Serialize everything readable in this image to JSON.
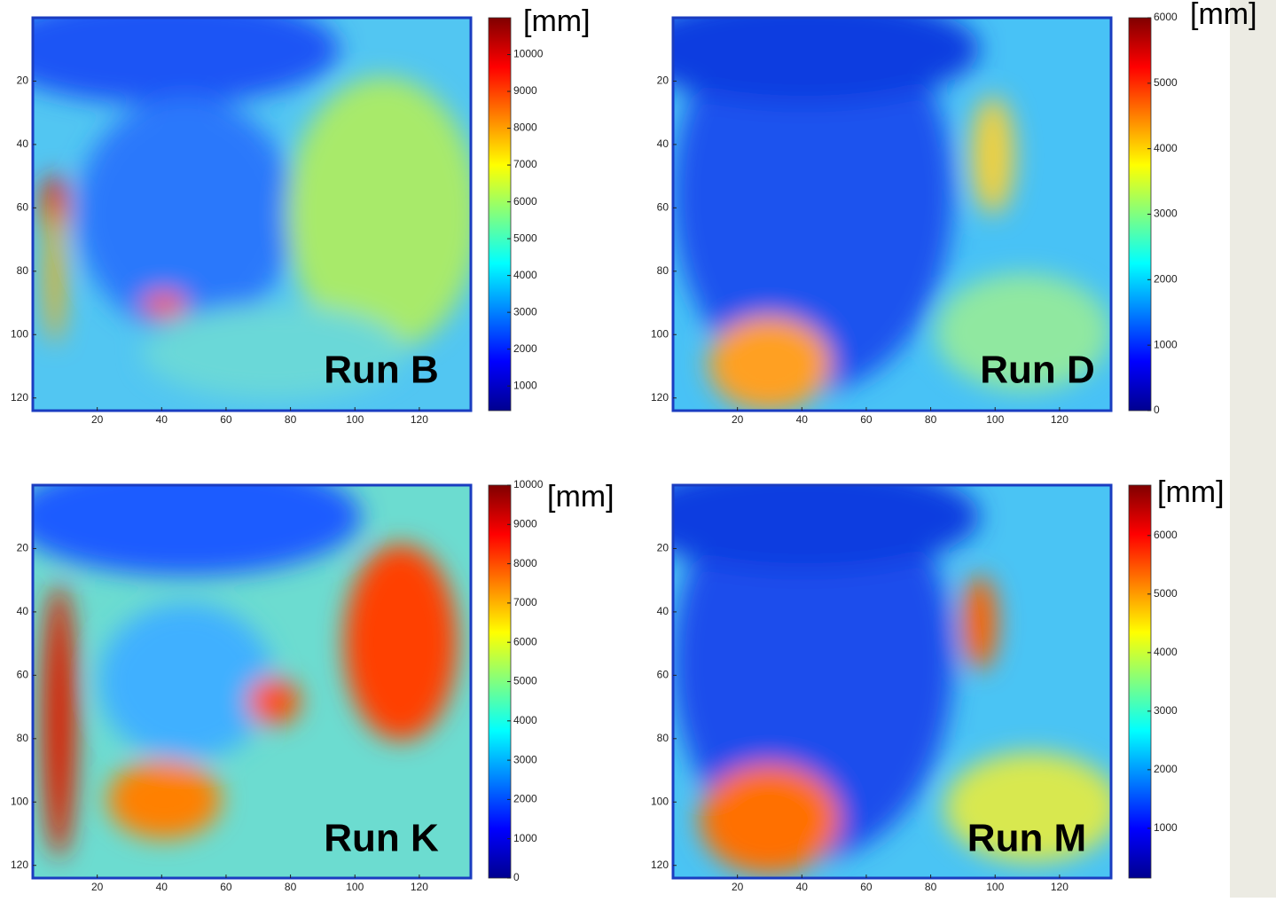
{
  "chart_data": [
    {
      "type": "heatmap",
      "title": "Run B",
      "colorbar_label": "[mm]",
      "colormap": "jet",
      "xlim": [
        0,
        136
      ],
      "ylim": [
        0,
        124
      ],
      "y_reversed": true,
      "xticks": [
        20,
        40,
        60,
        80,
        100,
        120
      ],
      "yticks": [
        20,
        40,
        60,
        80,
        100,
        120
      ],
      "clim": [
        330,
        11000
      ],
      "cticks": [
        1000,
        2000,
        3000,
        4000,
        5000,
        6000,
        7000,
        8000,
        9000,
        10000
      ]
    },
    {
      "type": "heatmap",
      "title": "Run D",
      "colorbar_label": "[mm]",
      "colormap": "jet",
      "xlim": [
        0,
        136
      ],
      "ylim": [
        0,
        124
      ],
      "y_reversed": true,
      "xticks": [
        20,
        40,
        60,
        80,
        100,
        120
      ],
      "yticks": [
        20,
        40,
        60,
        80,
        100,
        120
      ],
      "clim": [
        0,
        6000
      ],
      "cticks": [
        0,
        1000,
        2000,
        3000,
        4000,
        5000,
        6000
      ]
    },
    {
      "type": "heatmap",
      "title": "Run K",
      "colorbar_label": "[mm]",
      "colormap": "jet",
      "xlim": [
        0,
        136
      ],
      "ylim": [
        0,
        124
      ],
      "y_reversed": true,
      "xticks": [
        20,
        40,
        60,
        80,
        100,
        120
      ],
      "yticks": [
        20,
        40,
        60,
        80,
        100,
        120
      ],
      "clim": [
        0,
        10000
      ],
      "cticks": [
        0,
        1000,
        2000,
        3000,
        4000,
        5000,
        6000,
        7000,
        8000,
        9000,
        10000
      ]
    },
    {
      "type": "heatmap",
      "title": "Run M",
      "colorbar_label": "[mm]",
      "colormap": "jet",
      "xlim": [
        0,
        136
      ],
      "ylim": [
        0,
        124
      ],
      "y_reversed": true,
      "xticks": [
        20,
        40,
        60,
        80,
        100,
        120
      ],
      "yticks": [
        20,
        40,
        60,
        80,
        100,
        120
      ],
      "clim": [
        150,
        6860
      ],
      "cticks": [
        1000,
        2000,
        3000,
        4000,
        5000,
        6000
      ]
    }
  ]
}
